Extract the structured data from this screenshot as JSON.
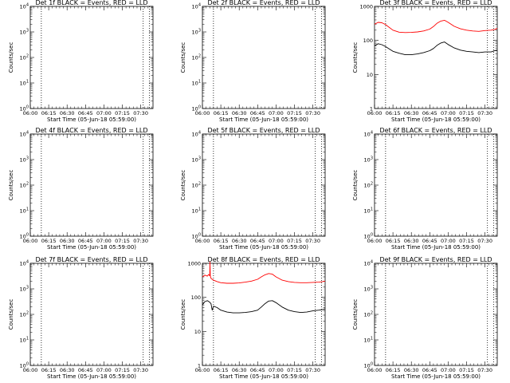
{
  "figure": {
    "background": "#ffffff",
    "colors": {
      "events": "#000000",
      "lld": "#ff0000",
      "axes": "#000000"
    }
  },
  "chart_data": [
    {
      "type": "line",
      "title": "Det 1f BLACK = Events, RED = LLD",
      "xlabel": "Start Time (05-Jun-18 05:59:00)",
      "ylabel": "Counts/sec",
      "xlim": [
        360,
        460
      ],
      "ylim": [
        1,
        10000
      ],
      "yscale": "log",
      "xticks": [
        "06:00",
        "06:15",
        "06:30",
        "06:45",
        "07:00",
        "07:15",
        "07:30"
      ],
      "yticks": [
        "10^0",
        "10^1",
        "10^2",
        "10^3",
        "10^4"
      ],
      "dotted_lines": [
        369,
        452,
        457
      ],
      "series": []
    },
    {
      "type": "line",
      "title": "Det 2f BLACK = Events, RED = LLD",
      "xlabel": "Start Time (05-Jun-18 05:59:00)",
      "ylabel": "Counts/sec",
      "xlim": [
        360,
        460
      ],
      "ylim": [
        1,
        10000
      ],
      "yscale": "log",
      "xticks": [
        "06:00",
        "06:15",
        "06:30",
        "06:45",
        "07:00",
        "07:15",
        "07:30"
      ],
      "yticks": [
        "10^0",
        "10^1",
        "10^2",
        "10^3",
        "10^4"
      ],
      "dotted_lines": [
        369,
        452,
        457
      ],
      "series": []
    },
    {
      "type": "line",
      "title": "Det 3f BLACK = Events, RED = LLD",
      "xlabel": "Start Time (05-Jun-18 05:59:00)",
      "ylabel": "Counts/sec",
      "xlim": [
        360,
        460
      ],
      "ylim": [
        1,
        1000
      ],
      "yscale": "log",
      "xticks": [
        "06:00",
        "06:15",
        "06:30",
        "06:45",
        "07:00",
        "07:15",
        "07:30"
      ],
      "yticks": [
        "1",
        "10",
        "100",
        "1000"
      ],
      "dotted_lines": [
        369,
        452,
        457
      ],
      "series": [
        {
          "color": "#ff0000",
          "x": [
            360,
            363,
            366,
            369,
            372,
            375,
            380,
            385,
            390,
            395,
            400,
            405,
            408,
            411,
            414,
            417,
            420,
            425,
            430,
            435,
            440,
            445,
            450,
            455,
            458,
            460
          ],
          "y": [
            300,
            340,
            330,
            290,
            240,
            200,
            175,
            170,
            172,
            178,
            190,
            215,
            255,
            320,
            370,
            390,
            340,
            260,
            220,
            200,
            190,
            185,
            195,
            200,
            210,
            225
          ]
        },
        {
          "color": "#000000",
          "x": [
            360,
            363,
            366,
            369,
            372,
            375,
            380,
            385,
            390,
            395,
            400,
            405,
            408,
            411,
            414,
            417,
            420,
            425,
            430,
            435,
            440,
            445,
            450,
            455,
            458,
            460
          ],
          "y": [
            70,
            80,
            75,
            66,
            56,
            48,
            42,
            38,
            38,
            40,
            44,
            50,
            58,
            72,
            84,
            90,
            76,
            60,
            52,
            48,
            46,
            44,
            46,
            46,
            50,
            52
          ]
        }
      ]
    },
    {
      "type": "line",
      "title": "Det 4f BLACK = Events, RED = LLD",
      "xlabel": "Start Time (05-Jun-18 05:59:00)",
      "ylabel": "Counts/sec",
      "xlim": [
        360,
        460
      ],
      "ylim": [
        1,
        10000
      ],
      "yscale": "log",
      "xticks": [
        "06:00",
        "06:15",
        "06:30",
        "06:45",
        "07:00",
        "07:15",
        "07:30"
      ],
      "yticks": [
        "10^0",
        "10^1",
        "10^2",
        "10^3",
        "10^4"
      ],
      "dotted_lines": [
        369,
        452,
        457
      ],
      "series": []
    },
    {
      "type": "line",
      "title": "Det 5f BLACK = Events, RED = LLD",
      "xlabel": "Start Time (05-Jun-18 05:59:00)",
      "ylabel": "Counts/sec",
      "xlim": [
        360,
        460
      ],
      "ylim": [
        1,
        10000
      ],
      "yscale": "log",
      "xticks": [
        "06:00",
        "06:15",
        "06:30",
        "06:45",
        "07:00",
        "07:15",
        "07:30"
      ],
      "yticks": [
        "10^0",
        "10^1",
        "10^2",
        "10^3",
        "10^4"
      ],
      "dotted_lines": [
        369,
        452,
        457
      ],
      "series": []
    },
    {
      "type": "line",
      "title": "Det 6f BLACK = Events, RED = LLD",
      "xlabel": "Start Time (05-Jun-18 05:59:00)",
      "ylabel": "Counts/sec",
      "xlim": [
        360,
        460
      ],
      "ylim": [
        1,
        10000
      ],
      "yscale": "log",
      "xticks": [
        "06:00",
        "06:15",
        "06:30",
        "06:45",
        "07:00",
        "07:15",
        "07:30"
      ],
      "yticks": [
        "10^0",
        "10^1",
        "10^2",
        "10^3",
        "10^4"
      ],
      "dotted_lines": [
        369,
        452,
        457
      ],
      "series": []
    },
    {
      "type": "line",
      "title": "Det 7f BLACK = Events, RED = LLD",
      "xlabel": "Start Time (05-Jun-18 05:59:00)",
      "ylabel": "Counts/sec",
      "xlim": [
        360,
        460
      ],
      "ylim": [
        1,
        10000
      ],
      "yscale": "log",
      "xticks": [
        "06:00",
        "06:15",
        "06:30",
        "06:45",
        "07:00",
        "07:15",
        "07:30"
      ],
      "yticks": [
        "10^0",
        "10^1",
        "10^2",
        "10^3",
        "10^4"
      ],
      "dotted_lines": [
        369,
        452,
        457
      ],
      "series": []
    },
    {
      "type": "line",
      "title": "Det 8f BLACK = Events, RED = LLD",
      "xlabel": "Start Time (05-Jun-18 05:59:00)",
      "ylabel": "Counts/sec",
      "xlim": [
        360,
        460
      ],
      "ylim": [
        1,
        1000
      ],
      "yscale": "log",
      "xticks": [
        "06:00",
        "06:15",
        "06:30",
        "06:45",
        "07:00",
        "07:15",
        "07:30"
      ],
      "yticks": [
        "1",
        "10",
        "100",
        "1000"
      ],
      "dotted_lines": [
        369,
        452,
        457
      ],
      "series": [
        {
          "color": "#ff0000",
          "x": [
            360,
            362,
            364,
            365,
            366,
            366.2,
            366.4,
            367,
            369,
            372,
            375,
            380,
            385,
            390,
            395,
            400,
            405,
            408,
            411,
            414,
            417,
            420,
            425,
            430,
            435,
            440,
            445,
            450,
            455,
            458,
            460
          ],
          "y": [
            400,
            450,
            420,
            470,
            430,
            1100,
            430,
            360,
            320,
            290,
            270,
            260,
            260,
            265,
            280,
            300,
            340,
            400,
            460,
            500,
            480,
            400,
            320,
            290,
            275,
            270,
            270,
            275,
            280,
            290,
            300
          ]
        },
        {
          "color": "#000000",
          "x": [
            360,
            362,
            364,
            366,
            367,
            368,
            369,
            372,
            375,
            380,
            385,
            390,
            395,
            400,
            405,
            408,
            411,
            414,
            417,
            420,
            425,
            430,
            435,
            440,
            445,
            450,
            455,
            458,
            460
          ],
          "y": [
            60,
            75,
            80,
            72,
            65,
            42,
            55,
            50,
            42,
            37,
            35,
            35,
            36,
            38,
            42,
            52,
            65,
            78,
            80,
            70,
            52,
            42,
            38,
            36,
            37,
            40,
            42,
            44,
            46
          ]
        }
      ]
    },
    {
      "type": "line",
      "title": "Det 9f BLACK = Events, RED = LLD",
      "xlabel": "Start Time (05-Jun-18 05:59:00)",
      "ylabel": "Counts/sec",
      "xlim": [
        360,
        460
      ],
      "ylim": [
        1,
        10000
      ],
      "yscale": "log",
      "xticks": [
        "06:00",
        "06:15",
        "06:30",
        "06:45",
        "07:00",
        "07:15",
        "07:30"
      ],
      "yticks": [
        "10^0",
        "10^1",
        "10^2",
        "10^3",
        "10^4"
      ],
      "dotted_lines": [
        369,
        452,
        457
      ],
      "series": []
    }
  ]
}
